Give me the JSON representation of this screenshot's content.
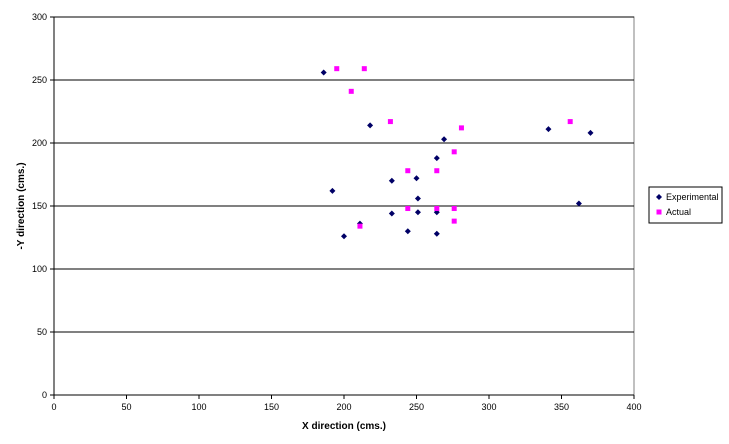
{
  "chart_data": {
    "type": "scatter",
    "title": "",
    "xlabel": "X direction (cms.)",
    "ylabel": "-Y direction (cms.)",
    "xlim": [
      0,
      400
    ],
    "ylim": [
      0,
      300
    ],
    "x_ticks": [
      0,
      50,
      100,
      150,
      200,
      250,
      300,
      350,
      400
    ],
    "y_ticks": [
      0,
      50,
      100,
      150,
      200,
      250,
      300
    ],
    "grid": "horizontal major gridlines",
    "legend": "right",
    "series": [
      {
        "name": "Experimental",
        "color": "#000066",
        "marker": "diamond",
        "points": [
          [
            186,
            256
          ],
          [
            218,
            214
          ],
          [
            269,
            203
          ],
          [
            341,
            211
          ],
          [
            370,
            208
          ],
          [
            264,
            188
          ],
          [
            192,
            162
          ],
          [
            233,
            170
          ],
          [
            250,
            172
          ],
          [
            251,
            156
          ],
          [
            362,
            152
          ],
          [
            264,
            145
          ],
          [
            251,
            145
          ],
          [
            233,
            144
          ],
          [
            211,
            136
          ],
          [
            244,
            130
          ],
          [
            264,
            128
          ],
          [
            200,
            126
          ]
        ]
      },
      {
        "name": "Actual",
        "color": "#FF00FF",
        "marker": "square",
        "points": [
          [
            195,
            259
          ],
          [
            214,
            259
          ],
          [
            205,
            241
          ],
          [
            232,
            217
          ],
          [
            281,
            212
          ],
          [
            356,
            217
          ],
          [
            276,
            193
          ],
          [
            244,
            178
          ],
          [
            264,
            178
          ],
          [
            244,
            148
          ],
          [
            264,
            148
          ],
          [
            276,
            148
          ],
          [
            276,
            138
          ],
          [
            211,
            134
          ]
        ]
      }
    ]
  }
}
